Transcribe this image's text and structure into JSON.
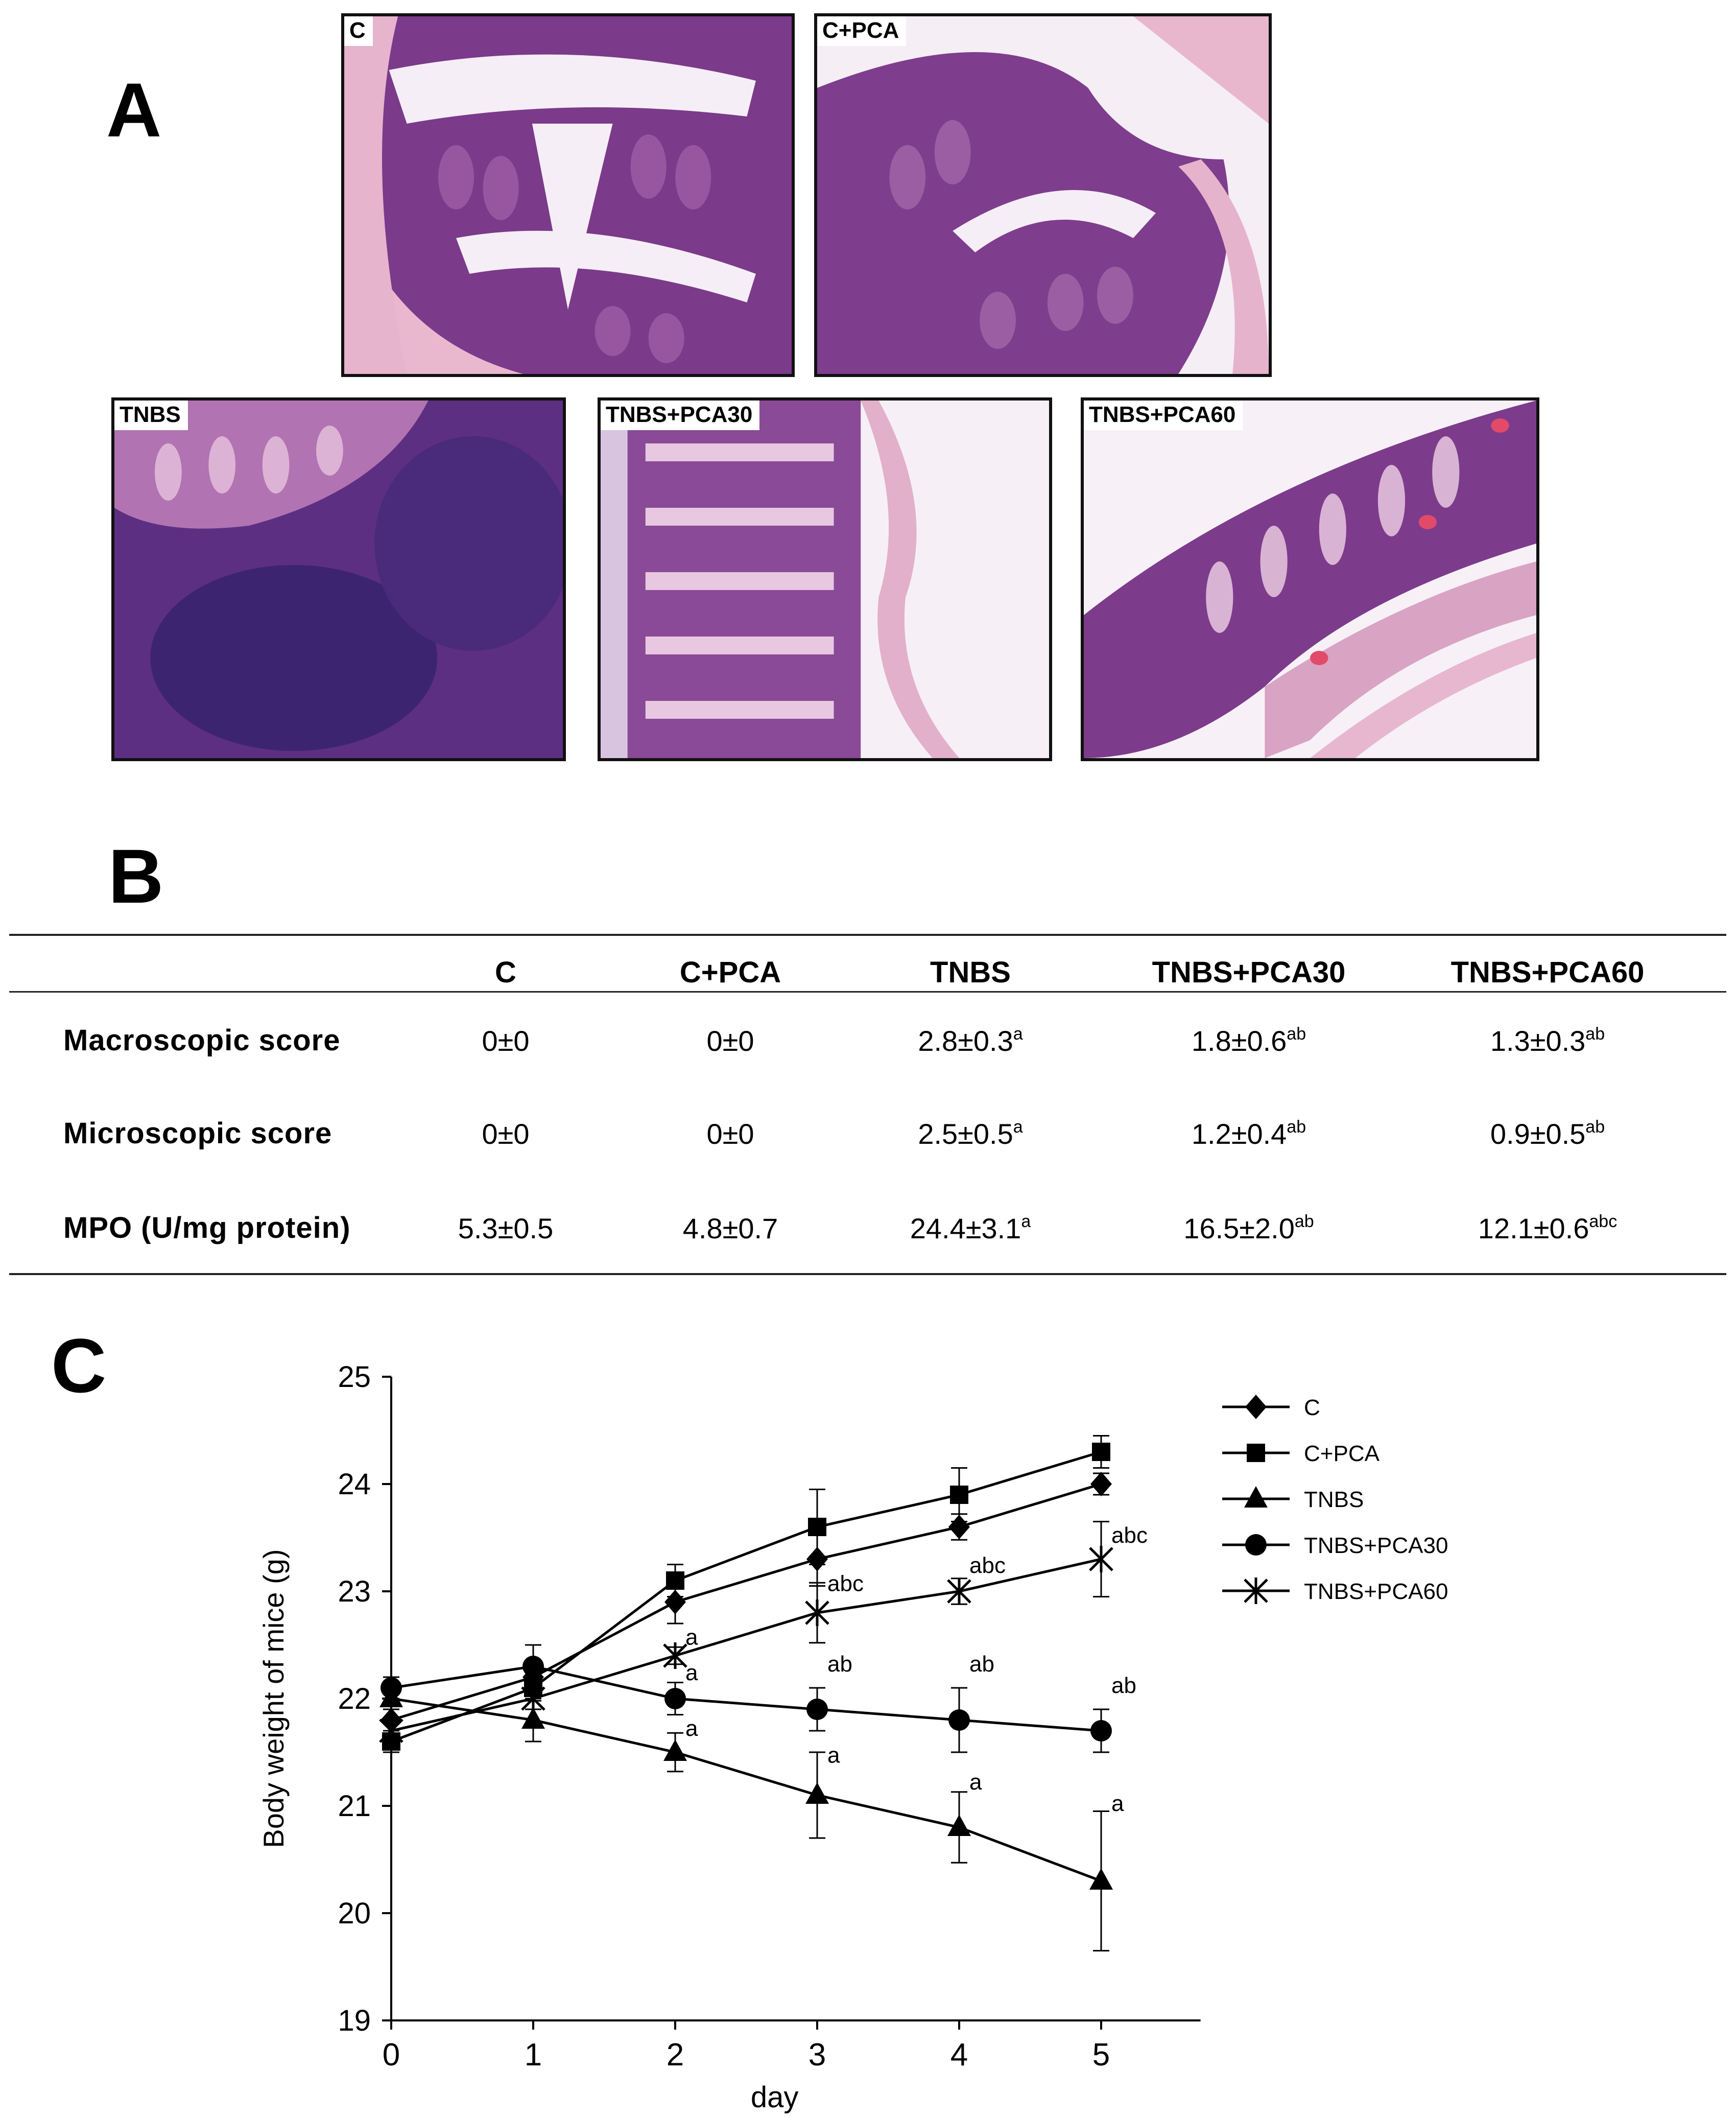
{
  "panels": {
    "a_letter": "A",
    "b_letter": "B",
    "c_letter": "C"
  },
  "micrographs": [
    {
      "label": "C"
    },
    {
      "label": "C+PCA"
    },
    {
      "label": "TNBS"
    },
    {
      "label": "TNBS+PCA30"
    },
    {
      "label": "TNBS+PCA60"
    }
  ],
  "table": {
    "headers": [
      "",
      "C",
      "C+PCA",
      "TNBS",
      "TNBS+PCA30",
      "TNBS+PCA60"
    ],
    "rows": [
      {
        "label": "Macroscopic score",
        "cells": [
          {
            "value": "0±0",
            "sup": ""
          },
          {
            "value": "0±0",
            "sup": ""
          },
          {
            "value": "2.8±0.3",
            "sup": "a"
          },
          {
            "value": "1.8±0.6",
            "sup": "ab"
          },
          {
            "value": "1.3±0.3",
            "sup": "ab"
          }
        ]
      },
      {
        "label": "Microscopic  score",
        "cells": [
          {
            "value": "0±0",
            "sup": ""
          },
          {
            "value": "0±0",
            "sup": ""
          },
          {
            "value": "2.5±0.5",
            "sup": "a"
          },
          {
            "value": "1.2±0.4",
            "sup": "ab"
          },
          {
            "value": "0.9±0.5",
            "sup": "ab"
          }
        ]
      },
      {
        "label": "MPO (U/mg protein)",
        "cells": [
          {
            "value": "5.3±0.5",
            "sup": ""
          },
          {
            "value": "4.8±0.7",
            "sup": ""
          },
          {
            "value": "24.4±3.1",
            "sup": "a"
          },
          {
            "value": "16.5±2.0",
            "sup": "ab"
          },
          {
            "value": "12.1±0.6",
            "sup": "abc"
          }
        ]
      }
    ]
  },
  "chart_data": {
    "type": "line",
    "xlabel": "day",
    "ylabel": "Body weight of mice  (g)",
    "x": [
      0,
      1,
      2,
      3,
      4,
      5
    ],
    "xlim": [
      0,
      5.7
    ],
    "ylim": [
      19,
      25
    ],
    "yticks": [
      19,
      20,
      21,
      22,
      23,
      24,
      25
    ],
    "xticks": [
      0,
      1,
      2,
      3,
      4,
      5
    ],
    "grid": false,
    "legend_position": "top-right",
    "series": [
      {
        "name": "C",
        "marker": "diamond",
        "values": [
          21.8,
          22.2,
          22.9,
          23.3,
          23.6,
          24.0
        ],
        "errors": [
          0.1,
          0.15,
          0.2,
          0.25,
          0.12,
          0.1
        ]
      },
      {
        "name": "C+PCA",
        "marker": "square",
        "values": [
          21.6,
          22.1,
          23.1,
          23.6,
          23.9,
          24.3
        ],
        "errors": [
          0.1,
          0.12,
          0.15,
          0.35,
          0.25,
          0.15
        ]
      },
      {
        "name": "TNBS",
        "marker": "triangle",
        "values": [
          22.0,
          21.8,
          21.5,
          21.1,
          20.8,
          20.3
        ],
        "errors": [
          0.1,
          0.2,
          0.18,
          0.4,
          0.33,
          0.65
        ]
      },
      {
        "name": "TNBS+PCA30",
        "marker": "circle",
        "values": [
          22.1,
          22.3,
          22.0,
          21.9,
          21.8,
          21.7
        ],
        "errors": [
          0.1,
          0.2,
          0.15,
          0.2,
          0.3,
          0.2
        ]
      },
      {
        "name": "TNBS+PCA60",
        "marker": "star",
        "values": [
          21.7,
          22.0,
          22.4,
          22.8,
          23.0,
          23.3
        ],
        "errors": [
          0.1,
          0.1,
          0.08,
          0.28,
          0.12,
          0.35
        ]
      }
    ],
    "annotations": [
      {
        "text": "abc",
        "x": 3,
        "y": 23.05
      },
      {
        "text": "abc",
        "x": 4,
        "y": 23.22
      },
      {
        "text": "abc",
        "x": 5,
        "y": 23.5
      },
      {
        "text": "a",
        "x": 2,
        "y": 22.55
      },
      {
        "text": "a",
        "x": 2,
        "y": 22.22
      },
      {
        "text": "ab",
        "x": 3,
        "y": 22.3
      },
      {
        "text": "ab",
        "x": 4,
        "y": 22.3
      },
      {
        "text": "ab",
        "x": 5,
        "y": 22.1
      },
      {
        "text": "a",
        "x": 2,
        "y": 21.7
      },
      {
        "text": "a",
        "x": 3,
        "y": 21.45
      },
      {
        "text": "a",
        "x": 4,
        "y": 21.2
      },
      {
        "text": "a",
        "x": 5,
        "y": 21.0
      }
    ]
  }
}
